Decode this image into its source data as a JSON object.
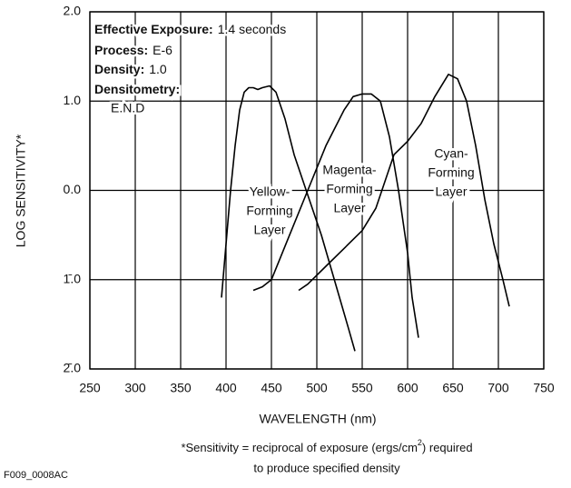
{
  "chart_data": {
    "type": "line",
    "info": [
      {
        "label": "Effective Exposure:",
        "text": "1.4 seconds"
      },
      {
        "label": "Process:",
        "text": "E-6"
      },
      {
        "label": "Density:",
        "text": "1.0"
      },
      {
        "label": "Densitometry:",
        "text": "E.N.D"
      }
    ],
    "ylabel": "LOG SENSITIVITY*",
    "xlabel": "WAVELENGTH (nm)",
    "footnote": [
      "*Sensitivity = reciprocal of exposure (ergs/cm",
      "2",
      ") required",
      "to produce specified density"
    ],
    "figure_id": "F009_0008AC",
    "xlim": [
      250,
      750
    ],
    "xticks": [
      250,
      300,
      350,
      400,
      450,
      500,
      550,
      600,
      650,
      700,
      750
    ],
    "ylim": [
      -2,
      2
    ],
    "yticks": [
      {
        "value": 2,
        "label": "2.0"
      },
      {
        "value": 1,
        "label": "1.0"
      },
      {
        "value": 0,
        "label": "0.0"
      },
      {
        "value": -1,
        "label": "1̄.0"
      },
      {
        "value": -2,
        "label": "2̄.0"
      }
    ],
    "grid": true,
    "series": [
      {
        "name": [
          "Yellow-",
          "Forming",
          "Layer"
        ],
        "color": "#000000",
        "x": [
          395,
          400,
          405,
          410,
          415,
          420,
          425,
          430,
          435,
          440,
          448,
          455,
          465,
          475,
          485,
          495,
          505,
          515,
          525,
          535,
          542
        ],
        "values": [
          -1.2,
          -0.6,
          0,
          0.5,
          0.9,
          1.1,
          1.15,
          1.15,
          1.13,
          1.15,
          1.17,
          1.1,
          0.8,
          0.4,
          0.1,
          -0.2,
          -0.5,
          -0.85,
          -1.2,
          -1.55,
          -1.8
        ]
      },
      {
        "name": [
          "Magenta-",
          "Forming",
          "Layer"
        ],
        "color": "#000000",
        "x": [
          430,
          440,
          450,
          470,
          490,
          510,
          530,
          540,
          550,
          560,
          570,
          580,
          590,
          600,
          605,
          612
        ],
        "values": [
          -1.12,
          -1.08,
          -1.0,
          -0.5,
          0,
          0.5,
          0.9,
          1.05,
          1.08,
          1.08,
          1.0,
          0.6,
          0,
          -0.7,
          -1.2,
          -1.65
        ]
      },
      {
        "name": [
          "Cyan-",
          "Forming",
          "Layer"
        ],
        "color": "#000000",
        "x": [
          480,
          490,
          510,
          530,
          550,
          565,
          575,
          585,
          600,
          615,
          630,
          645,
          655,
          665,
          675,
          685,
          695,
          705,
          712
        ],
        "values": [
          -1.12,
          -1.05,
          -0.85,
          -0.65,
          -0.45,
          -0.2,
          0.1,
          0.4,
          0.55,
          0.75,
          1.05,
          1.3,
          1.25,
          1.0,
          0.5,
          -0.1,
          -0.6,
          -1.0,
          -1.3
        ]
      }
    ]
  }
}
